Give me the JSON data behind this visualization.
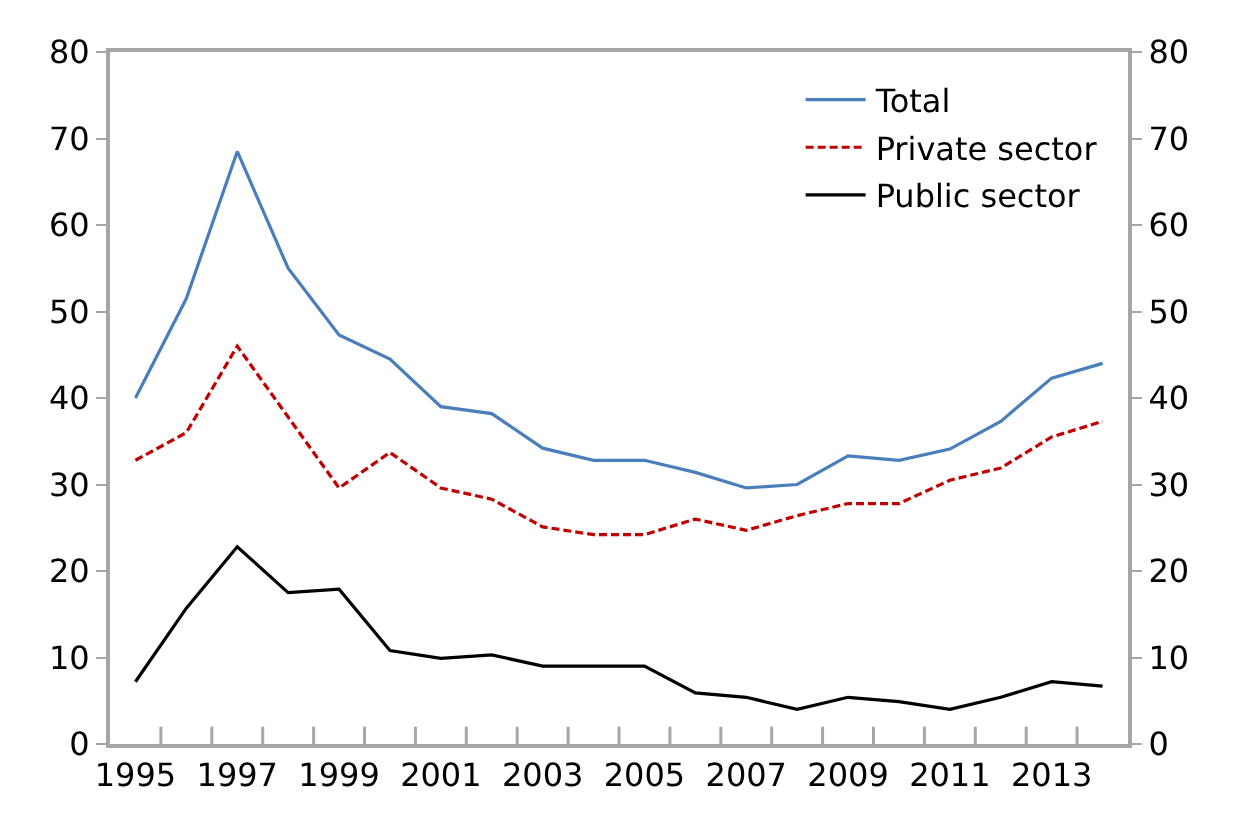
{
  "chart_data": {
    "type": "line",
    "categories": [
      "1995",
      null,
      "1997",
      null,
      "1999",
      null,
      "2001",
      null,
      "2003",
      null,
      "2005",
      null,
      "2007",
      null,
      "2009",
      null,
      "2011",
      null,
      "2013",
      null
    ],
    "series": [
      {
        "name": "Total",
        "color": "#4a7ebb",
        "line_style": "solid",
        "values": [
          40,
          51.5,
          68.5,
          55,
          47.3,
          44.5,
          39,
          38.2,
          34.2,
          32.8,
          32.8,
          31.4,
          29.6,
          30,
          33.3,
          32.8,
          34.1,
          37.3,
          42.3,
          44
        ]
      },
      {
        "name": "Private sector",
        "color": "#c00000",
        "line_style": "dashed",
        "values": [
          32.8,
          36,
          46,
          37.8,
          29.6,
          33.7,
          29.6,
          28.3,
          25.1,
          24.2,
          24.2,
          26,
          24.7,
          26.4,
          27.8,
          27.8,
          30.5,
          31.9,
          35.5,
          37.3
        ]
      },
      {
        "name": "Public sector",
        "color": "#000000",
        "line_style": "solid",
        "values": [
          7.2,
          15.7,
          22.8,
          17.5,
          17.9,
          10.8,
          9.9,
          10.3,
          9.0,
          9.0,
          9.0,
          5.9,
          5.4,
          4.0,
          5.4,
          4.9,
          4.0,
          5.4,
          7.2,
          6.7
        ]
      }
    ],
    "ylim": [
      0,
      80
    ],
    "yticks": [
      0,
      10,
      20,
      30,
      40,
      50,
      60,
      70,
      80
    ],
    "y2lim": [
      0,
      80
    ],
    "y2ticks": [
      0,
      10,
      20,
      30,
      40,
      50,
      60,
      70,
      80
    ],
    "legend": "top right"
  }
}
